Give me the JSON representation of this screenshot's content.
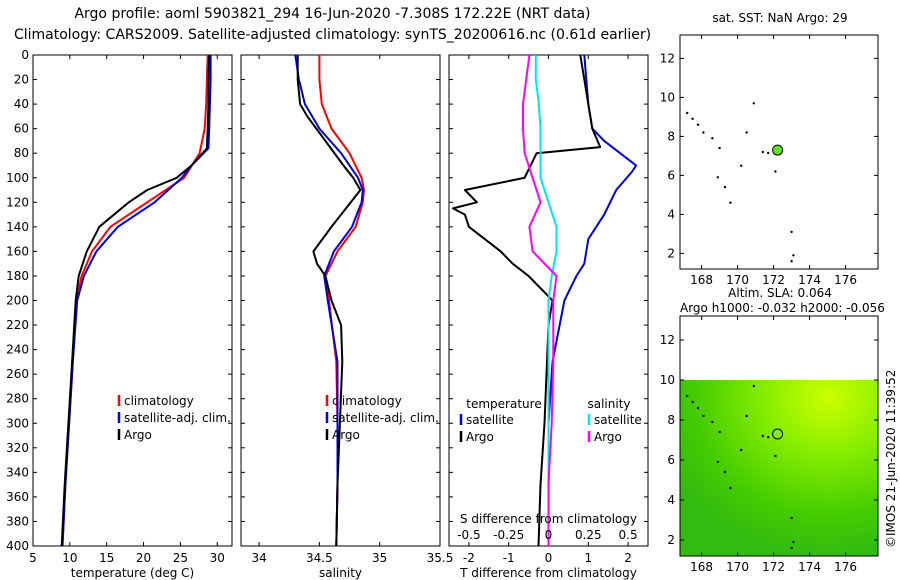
{
  "titles": {
    "line1": "Argo profile: aoml 5903821_294 16-Jun-2020 -7.308S 172.22E (NRT data)",
    "line2": "Climatology: CARS2009. Satellite-adjusted climatology: synTS_20200616.nc (0.61d earlier)"
  },
  "colors": {
    "climatology": "#ff0000",
    "satellite": "#0000dd",
    "argo": "#000000",
    "temp_diff": "#ff00ff",
    "sal_diff": "#00e5ee",
    "float_marker": "#66dd22"
  },
  "chart_data": [
    {
      "type": "line",
      "id": "temperature",
      "xlabel": "temperature (deg C)",
      "ylabel": "",
      "xlim": [
        5,
        32
      ],
      "ylim": [
        400,
        0
      ],
      "xticks": [
        5,
        10,
        15,
        20,
        25,
        30
      ],
      "yticks": [
        0,
        20,
        40,
        60,
        80,
        100,
        120,
        140,
        160,
        180,
        200,
        220,
        240,
        260,
        280,
        300,
        320,
        340,
        360,
        380,
        400
      ],
      "legend": [
        "climatology",
        "satellite-adj. clim.",
        "Argo"
      ],
      "legend_position": "lower-right",
      "series": [
        {
          "name": "climatology",
          "color": "climatology",
          "depth": [
            0,
            20,
            40,
            60,
            80,
            100,
            120,
            140,
            160,
            180,
            200,
            250,
            300,
            350,
            400
          ],
          "values": [
            28.7,
            28.6,
            28.5,
            28.3,
            27.6,
            25.5,
            20.5,
            15.5,
            13.0,
            11.6,
            10.9,
            10.4,
            9.9,
            9.4,
            9.0
          ]
        },
        {
          "name": "satellite-adj. clim.",
          "color": "satellite",
          "depth": [
            0,
            20,
            40,
            60,
            76,
            90,
            100,
            120,
            140,
            160,
            180,
            200,
            250,
            300,
            350,
            400
          ],
          "values": [
            29.1,
            29.1,
            29.0,
            28.9,
            28.8,
            26.5,
            25.2,
            21.5,
            16.5,
            13.6,
            11.9,
            11.0,
            10.4,
            9.9,
            9.4,
            9.0
          ]
        },
        {
          "name": "Argo",
          "color": "argo",
          "depth": [
            0,
            20,
            40,
            60,
            76,
            90,
            100,
            110,
            120,
            140,
            160,
            180,
            200,
            250,
            300,
            350,
            400
          ],
          "values": [
            28.9,
            28.8,
            28.8,
            28.7,
            28.6,
            26.5,
            24.5,
            20.5,
            18.0,
            14.0,
            12.3,
            11.2,
            10.8,
            10.3,
            9.8,
            9.3,
            8.9
          ]
        }
      ]
    },
    {
      "type": "line",
      "id": "salinity",
      "xlabel": "salinity",
      "ylabel": "",
      "xlim": [
        33.85,
        35.5
      ],
      "ylim": [
        400,
        0
      ],
      "xticks": [
        34,
        34.5,
        35,
        35.5
      ],
      "legend": [
        "climatology",
        "satellite-adj. clim.",
        "Argo"
      ],
      "legend_position": "lower-right",
      "series": [
        {
          "name": "climatology",
          "color": "climatology",
          "depth": [
            0,
            20,
            40,
            60,
            80,
            100,
            110,
            120,
            140,
            160,
            180,
            200,
            250,
            300,
            350,
            400
          ],
          "values": [
            34.5,
            34.5,
            34.52,
            34.6,
            34.75,
            34.85,
            34.87,
            34.86,
            34.8,
            34.65,
            34.55,
            34.58,
            34.64,
            34.65,
            34.65,
            34.64
          ]
        },
        {
          "name": "satellite-adj. clim.",
          "color": "satellite",
          "depth": [
            0,
            20,
            40,
            60,
            80,
            100,
            110,
            120,
            140,
            160,
            180,
            200,
            250,
            300,
            350,
            400
          ],
          "values": [
            34.3,
            34.33,
            34.38,
            34.5,
            34.68,
            34.82,
            34.86,
            34.85,
            34.77,
            34.62,
            34.54,
            34.57,
            34.65,
            34.65,
            34.65,
            34.64
          ]
        },
        {
          "name": "Argo",
          "color": "argo",
          "depth": [
            0,
            20,
            40,
            50,
            70,
            90,
            100,
            110,
            120,
            140,
            160,
            170,
            180,
            200,
            220,
            250,
            300,
            350,
            400
          ],
          "values": [
            34.32,
            34.32,
            34.34,
            34.4,
            34.55,
            34.7,
            34.78,
            34.84,
            34.76,
            34.6,
            34.45,
            34.48,
            34.55,
            34.6,
            34.68,
            34.69,
            34.67,
            34.65,
            34.64
          ]
        }
      ]
    },
    {
      "type": "line",
      "id": "difference",
      "xlabel": "T difference from climatology",
      "xlabel_top": "S difference from climatology",
      "xlim": [
        -2.5,
        2.5
      ],
      "ylim": [
        400,
        0
      ],
      "xticks": [
        -2,
        -1,
        0,
        1,
        2
      ],
      "xticks_top": [
        -0.5,
        -0.25,
        0,
        0.25,
        0.5
      ],
      "legend_left_title": "temperature",
      "legend_right_title": "salinity",
      "legend_left": [
        "satellite",
        "Argo"
      ],
      "legend_right": [
        "satellite",
        "Argo"
      ],
      "legend_position": "lower",
      "series": [
        {
          "name": "T satellite",
          "color": "satellite",
          "depth": [
            0,
            20,
            40,
            60,
            70,
            80,
            90,
            95,
            110,
            130,
            150,
            170,
            180,
            190,
            200,
            250,
            300,
            350,
            400
          ],
          "values": [
            0.9,
            0.95,
            1.0,
            1.1,
            1.4,
            1.8,
            2.2,
            2.1,
            1.7,
            1.4,
            1.0,
            0.9,
            0.7,
            0.55,
            0.4,
            0.1,
            0.0,
            0.0,
            0.0
          ]
        },
        {
          "name": "T Argo",
          "color": "argo",
          "depth": [
            0,
            20,
            40,
            60,
            75,
            80,
            100,
            110,
            120,
            125,
            130,
            140,
            150,
            160,
            170,
            180,
            190,
            200,
            220,
            300,
            350,
            400
          ],
          "values": [
            0.8,
            0.9,
            1.0,
            1.1,
            1.3,
            -0.3,
            -0.6,
            -2.1,
            -1.8,
            -2.4,
            -2.1,
            -2.0,
            -1.6,
            -1.2,
            -0.9,
            -0.5,
            -0.2,
            0.1,
            0.0,
            -0.1,
            -0.2,
            -0.25
          ]
        },
        {
          "name": "S satellite",
          "color": "sal_diff",
          "depth": [
            0,
            20,
            40,
            60,
            80,
            100,
            120,
            140,
            160,
            180,
            200,
            250,
            300,
            400
          ],
          "values": [
            -0.08,
            -0.08,
            -0.06,
            -0.05,
            -0.05,
            -0.05,
            0.0,
            0.05,
            0.05,
            0.02,
            0.0,
            0.0,
            0.0,
            0.0
          ]
        },
        {
          "name": "S Argo",
          "color": "temp_diff",
          "depth": [
            0,
            20,
            40,
            60,
            80,
            100,
            120,
            140,
            160,
            180,
            200,
            250,
            300,
            350,
            400
          ],
          "values": [
            -0.12,
            -0.14,
            -0.16,
            -0.16,
            -0.15,
            -0.1,
            -0.05,
            -0.12,
            -0.1,
            0.05,
            0.03,
            0.03,
            0.02,
            0.0,
            0.0
          ]
        }
      ]
    }
  ],
  "maps": {
    "sst": {
      "title": "sat. SST: NaN Argo: 29",
      "xticks": [
        168,
        170,
        172,
        174,
        176
      ],
      "yticks": [
        2,
        4,
        6,
        8,
        10,
        12
      ],
      "xlim": [
        166.8,
        177.8
      ],
      "ylim": [
        1.2,
        13.2
      ],
      "float": {
        "lon": 172.22,
        "lat": 7.3
      }
    },
    "sla": {
      "title1": "Altim. SLA: 0.064",
      "title2": "Argo h1000: -0.032 h2000: -0.056",
      "xticks": [
        168,
        170,
        172,
        174,
        176
      ],
      "yticks": [
        2,
        4,
        6,
        8,
        10,
        12
      ],
      "xlim": [
        166.8,
        177.8
      ],
      "ylim": [
        1.2,
        13.2
      ],
      "field_top_lat": 10,
      "float": {
        "lon": 172.22,
        "lat": 7.3
      }
    }
  },
  "credit": "©IMOS 21-Jun-2020 11:39:52"
}
